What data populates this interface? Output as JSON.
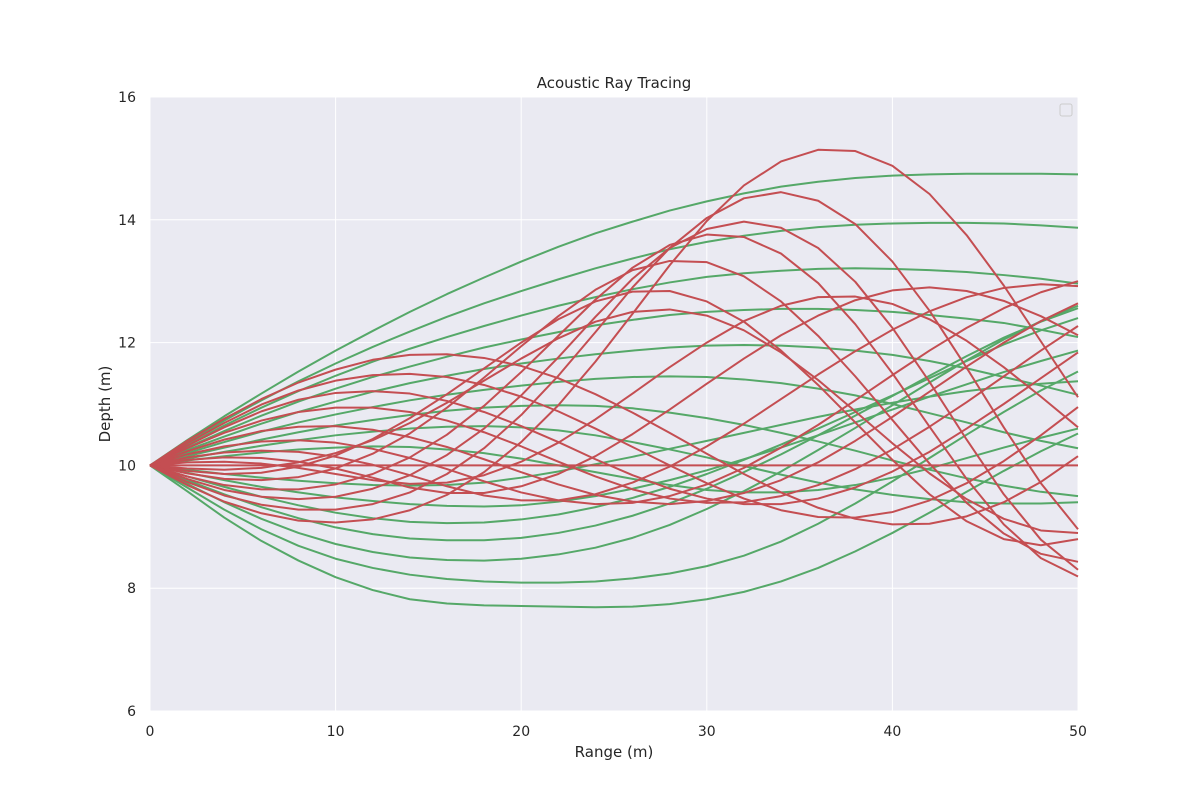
{
  "chart_data": {
    "type": "line",
    "title": "Acoustic Ray Tracing",
    "xlabel": "Range (m)",
    "ylabel": "Depth (m)",
    "xlim": [
      0,
      50
    ],
    "ylim": [
      6,
      16
    ],
    "xticks": [
      0,
      10,
      20,
      30,
      40,
      50
    ],
    "yticks": [
      6,
      8,
      10,
      12,
      14,
      16
    ],
    "grid": true,
    "legend": "top-right (empty)",
    "colors": {
      "green": "#55a868",
      "red": "#c44e52",
      "background": "#eaeaf2",
      "grid": "#ffffff"
    },
    "x": [
      0,
      2,
      4,
      6,
      8,
      10,
      12,
      14,
      16,
      18,
      20,
      22,
      24,
      26,
      28,
      30,
      32,
      34,
      36,
      38,
      40,
      42,
      44,
      46,
      48,
      50
    ],
    "series": [
      {
        "color": "green",
        "values": [
          10,
          10.41,
          10.8,
          11.17,
          11.53,
          11.87,
          12.19,
          12.5,
          12.79,
          13.06,
          13.32,
          13.56,
          13.78,
          13.97,
          14.15,
          14.3,
          14.43,
          14.54,
          14.62,
          14.68,
          14.72,
          14.74,
          14.75,
          14.75,
          14.75,
          14.74
        ]
      },
      {
        "color": "green",
        "values": [
          10,
          10.37,
          10.73,
          11.06,
          11.37,
          11.66,
          11.93,
          12.18,
          12.42,
          12.64,
          12.84,
          13.03,
          13.21,
          13.37,
          13.52,
          13.64,
          13.74,
          13.82,
          13.88,
          13.92,
          13.94,
          13.95,
          13.95,
          13.94,
          13.91,
          13.87
        ]
      },
      {
        "color": "green",
        "values": [
          10,
          10.33,
          10.65,
          10.94,
          11.21,
          11.46,
          11.69,
          11.9,
          12.09,
          12.27,
          12.44,
          12.6,
          12.74,
          12.87,
          12.98,
          13.07,
          13.13,
          13.17,
          13.2,
          13.21,
          13.2,
          13.18,
          13.15,
          13.1,
          13.04,
          12.96
        ]
      },
      {
        "color": "green",
        "values": [
          10,
          10.29,
          10.56,
          10.81,
          11.04,
          11.25,
          11.44,
          11.61,
          11.77,
          11.92,
          12.05,
          12.17,
          12.28,
          12.37,
          12.45,
          12.5,
          12.53,
          12.55,
          12.55,
          12.53,
          12.5,
          12.45,
          12.39,
          12.32,
          12.21,
          12.09
        ]
      },
      {
        "color": "green",
        "values": [
          10,
          10.25,
          10.47,
          10.68,
          10.87,
          11.04,
          11.2,
          11.34,
          11.46,
          11.57,
          11.66,
          11.74,
          11.81,
          11.87,
          11.92,
          11.95,
          11.96,
          11.95,
          11.92,
          11.87,
          11.8,
          11.7,
          11.58,
          11.44,
          11.3,
          11.15
        ]
      },
      {
        "color": "green",
        "values": [
          10,
          10.2,
          10.38,
          10.55,
          10.7,
          10.83,
          10.95,
          11.06,
          11.15,
          11.23,
          11.3,
          11.36,
          11.41,
          11.44,
          11.45,
          11.44,
          11.4,
          11.34,
          11.25,
          11.14,
          11.0,
          10.85,
          10.7,
          10.54,
          10.4,
          10.28
        ]
      },
      {
        "color": "green",
        "values": [
          10,
          10.15,
          10.29,
          10.42,
          10.54,
          10.65,
          10.74,
          10.82,
          10.89,
          10.94,
          10.97,
          10.98,
          10.97,
          10.93,
          10.86,
          10.77,
          10.66,
          10.53,
          10.39,
          10.24,
          10.08,
          9.93,
          9.79,
          9.67,
          9.57,
          9.5
        ]
      },
      {
        "color": "green",
        "values": [
          10,
          10.11,
          10.22,
          10.32,
          10.41,
          10.49,
          10.55,
          10.6,
          10.63,
          10.64,
          10.62,
          10.57,
          10.49,
          10.38,
          10.26,
          10.13,
          9.99,
          9.85,
          9.72,
          9.61,
          9.52,
          9.45,
          9.4,
          9.38,
          9.38,
          9.4
        ]
      },
      {
        "color": "green",
        "values": [
          10,
          10.08,
          10.15,
          10.21,
          10.26,
          10.29,
          10.31,
          10.3,
          10.26,
          10.2,
          10.11,
          10.0,
          9.89,
          9.78,
          9.68,
          9.6,
          9.56,
          9.56,
          9.6,
          9.68,
          9.8,
          9.95,
          10.12,
          10.29,
          10.45,
          10.6
        ]
      },
      {
        "color": "green",
        "values": [
          10,
          9.93,
          9.86,
          9.8,
          9.75,
          9.71,
          9.68,
          9.67,
          9.68,
          9.72,
          9.8,
          9.9,
          10.02,
          10.14,
          10.27,
          10.4,
          10.53,
          10.66,
          10.79,
          10.91,
          11.02,
          11.12,
          11.21,
          11.28,
          11.33,
          11.37
        ]
      },
      {
        "color": "green",
        "values": [
          10,
          9.88,
          9.76,
          9.65,
          9.56,
          9.48,
          9.42,
          9.37,
          9.34,
          9.33,
          9.35,
          9.41,
          9.5,
          9.62,
          9.76,
          9.92,
          10.1,
          10.29,
          10.49,
          10.7,
          10.91,
          11.12,
          11.32,
          11.52,
          11.7,
          11.87
        ]
      },
      {
        "color": "green",
        "values": [
          10,
          9.82,
          9.65,
          9.49,
          9.35,
          9.23,
          9.14,
          9.08,
          9.06,
          9.07,
          9.12,
          9.2,
          9.32,
          9.47,
          9.65,
          9.86,
          10.09,
          10.34,
          10.6,
          10.87,
          11.14,
          11.42,
          11.7,
          11.97,
          12.2,
          12.4
        ]
      },
      {
        "color": "green",
        "values": [
          10,
          9.76,
          9.53,
          9.32,
          9.14,
          8.99,
          8.88,
          8.81,
          8.78,
          8.78,
          8.82,
          8.9,
          9.02,
          9.18,
          9.38,
          9.62,
          9.89,
          10.18,
          10.49,
          10.81,
          11.13,
          11.46,
          11.78,
          12.08,
          12.34,
          12.56
        ]
      },
      {
        "color": "green",
        "values": [
          10,
          9.7,
          9.4,
          9.13,
          8.9,
          8.72,
          8.59,
          8.5,
          8.46,
          8.45,
          8.48,
          8.55,
          8.66,
          8.82,
          9.03,
          9.29,
          9.58,
          9.9,
          10.25,
          10.61,
          10.98,
          11.35,
          11.71,
          12.05,
          12.35,
          12.6
        ]
      },
      {
        "color": "green",
        "values": [
          10,
          9.64,
          9.28,
          8.96,
          8.69,
          8.48,
          8.33,
          8.22,
          8.15,
          8.11,
          8.09,
          8.09,
          8.11,
          8.16,
          8.24,
          8.36,
          8.53,
          8.76,
          9.05,
          9.38,
          9.74,
          10.12,
          10.5,
          10.87,
          11.22,
          11.53
        ]
      },
      {
        "color": "green",
        "values": [
          10,
          9.58,
          9.15,
          8.77,
          8.45,
          8.18,
          7.97,
          7.82,
          7.75,
          7.72,
          7.71,
          7.7,
          7.69,
          7.7,
          7.74,
          7.82,
          7.94,
          8.11,
          8.33,
          8.6,
          8.9,
          9.23,
          9.57,
          9.91,
          10.23,
          10.52
        ]
      },
      {
        "color": "red",
        "values": [
          10,
          10.4,
          10.76,
          11.08,
          11.35,
          11.56,
          11.72,
          11.8,
          11.81,
          11.75,
          11.62,
          11.42,
          11.16,
          10.86,
          10.53,
          10.19,
          9.86,
          9.56,
          9.31,
          9.13,
          9.04,
          9.05,
          9.17,
          9.4,
          9.73,
          10.15
        ]
      },
      {
        "color": "red",
        "values": [
          10,
          10.36,
          10.69,
          10.99,
          11.22,
          11.38,
          11.47,
          11.49,
          11.44,
          11.31,
          11.12,
          10.88,
          10.6,
          10.3,
          10.0,
          9.71,
          9.46,
          9.27,
          9.16,
          9.15,
          9.24,
          9.43,
          9.71,
          10.07,
          10.49,
          10.95
        ]
      },
      {
        "color": "red",
        "values": [
          10,
          10.32,
          10.62,
          10.88,
          11.07,
          11.18,
          11.21,
          11.17,
          11.05,
          10.87,
          10.64,
          10.38,
          10.1,
          9.84,
          9.62,
          9.46,
          9.37,
          9.37,
          9.46,
          9.64,
          9.9,
          10.22,
          10.6,
          11.0,
          11.42,
          11.84
        ]
      },
      {
        "color": "red",
        "values": [
          10,
          10.28,
          10.53,
          10.73,
          10.87,
          10.94,
          10.94,
          10.87,
          10.73,
          10.54,
          10.31,
          10.06,
          9.82,
          9.61,
          9.46,
          9.39,
          9.4,
          9.5,
          9.68,
          9.94,
          10.26,
          10.63,
          11.03,
          11.45,
          11.87,
          12.27
        ]
      },
      {
        "color": "red",
        "values": [
          10,
          10.23,
          10.42,
          10.56,
          10.63,
          10.64,
          10.58,
          10.46,
          10.3,
          10.1,
          9.89,
          9.69,
          9.52,
          9.41,
          9.37,
          9.42,
          9.55,
          9.76,
          10.05,
          10.4,
          10.79,
          11.2,
          11.61,
          12.0,
          12.35,
          12.64
        ]
      },
      {
        "color": "red",
        "values": [
          10,
          10.18,
          10.31,
          10.39,
          10.41,
          10.37,
          10.27,
          10.12,
          9.94,
          9.74,
          9.56,
          9.43,
          9.37,
          9.39,
          9.5,
          9.69,
          9.96,
          10.29,
          10.66,
          11.06,
          11.47,
          11.87,
          12.24,
          12.56,
          12.82,
          13.0
        ]
      },
      {
        "color": "red",
        "values": [
          10,
          10.13,
          10.21,
          10.24,
          10.22,
          10.14,
          10.01,
          9.84,
          9.66,
          9.51,
          9.43,
          9.43,
          9.53,
          9.72,
          9.98,
          10.31,
          10.68,
          11.08,
          11.48,
          11.86,
          12.21,
          12.51,
          12.74,
          12.89,
          12.95,
          12.92
        ]
      },
      {
        "color": "red",
        "values": [
          10,
          10.09,
          10.13,
          10.12,
          10.06,
          9.95,
          9.8,
          9.64,
          9.55,
          9.55,
          9.66,
          9.86,
          10.15,
          10.51,
          10.91,
          11.33,
          11.74,
          12.12,
          12.44,
          12.69,
          12.85,
          12.9,
          12.84,
          12.68,
          12.43,
          12.12
        ]
      },
      {
        "color": "red",
        "values": [
          10,
          10.05,
          10.06,
          10.03,
          9.96,
          9.86,
          9.76,
          9.7,
          9.72,
          9.84,
          10.06,
          10.37,
          10.75,
          11.17,
          11.6,
          12.0,
          12.35,
          12.6,
          12.74,
          12.75,
          12.63,
          12.38,
          12.03,
          11.6,
          11.12,
          10.62
        ]
      },
      {
        "color": "red",
        "values": [
          10,
          10.0,
          10.0,
          10.0,
          10.0,
          10.0,
          10.0,
          10.0,
          10.0,
          10.0,
          10.0,
          10.0,
          10.0,
          10.0,
          10.0,
          10.0,
          10.0,
          10.0,
          10.0,
          10.0,
          10.0,
          10.0,
          10.0,
          10.0,
          10.0,
          10.0
        ]
      },
      {
        "color": "red",
        "values": [
          10,
          9.95,
          9.93,
          9.96,
          10.05,
          10.2,
          10.41,
          10.69,
          11.02,
          11.38,
          11.74,
          12.07,
          12.34,
          12.5,
          12.54,
          12.44,
          12.2,
          11.84,
          11.39,
          10.88,
          10.36,
          9.87,
          9.45,
          9.13,
          8.94,
          8.9
        ]
      },
      {
        "color": "red",
        "values": [
          10,
          9.91,
          9.86,
          9.88,
          9.98,
          10.16,
          10.43,
          10.77,
          11.16,
          11.58,
          12.0,
          12.38,
          12.67,
          12.83,
          12.84,
          12.67,
          12.34,
          11.87,
          11.31,
          10.7,
          10.09,
          9.53,
          9.09,
          8.8,
          8.7,
          8.8
        ]
      },
      {
        "color": "red",
        "values": [
          10,
          9.87,
          9.78,
          9.76,
          9.81,
          9.95,
          10.19,
          10.52,
          10.94,
          11.43,
          11.94,
          12.43,
          12.86,
          13.18,
          13.33,
          13.31,
          13.08,
          12.67,
          12.11,
          11.45,
          10.74,
          10.03,
          9.39,
          8.89,
          8.56,
          8.43
        ]
      },
      {
        "color": "red",
        "values": [
          10,
          9.82,
          9.68,
          9.61,
          9.61,
          9.69,
          9.86,
          10.13,
          10.5,
          10.97,
          11.52,
          12.11,
          12.7,
          13.22,
          13.59,
          13.76,
          13.72,
          13.45,
          12.97,
          12.3,
          11.5,
          10.63,
          9.78,
          9.04,
          8.49,
          8.19
        ]
      },
      {
        "color": "red",
        "values": [
          10,
          9.78,
          9.6,
          9.49,
          9.45,
          9.49,
          9.62,
          9.84,
          10.17,
          10.6,
          11.14,
          11.76,
          12.42,
          13.04,
          13.54,
          13.85,
          13.97,
          13.87,
          13.54,
          12.99,
          12.24,
          11.36,
          10.42,
          9.53,
          8.79,
          8.3
        ]
      },
      {
        "color": "red",
        "values": [
          10,
          9.73,
          9.51,
          9.36,
          9.28,
          9.28,
          9.37,
          9.56,
          9.86,
          10.28,
          10.82,
          11.46,
          12.17,
          12.9,
          13.54,
          14.03,
          14.35,
          14.45,
          14.31,
          13.93,
          13.32,
          12.52,
          11.59,
          10.62,
          9.71,
          8.96
        ]
      },
      {
        "color": "red",
        "values": [
          10,
          9.68,
          9.41,
          9.22,
          9.1,
          9.07,
          9.12,
          9.27,
          9.52,
          9.89,
          10.38,
          10.98,
          11.69,
          12.47,
          13.26,
          13.98,
          14.56,
          14.95,
          15.14,
          15.12,
          14.88,
          14.42,
          13.75,
          12.93,
          12.02,
          11.11
        ]
      }
    ]
  }
}
